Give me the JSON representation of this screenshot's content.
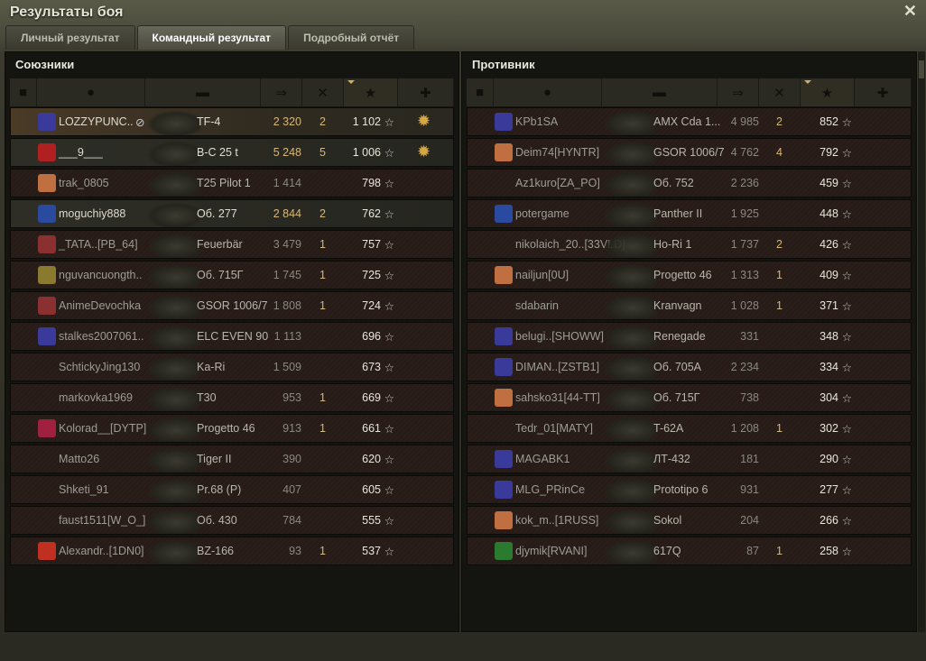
{
  "window": {
    "title": "Результаты боя",
    "close_icon": "close-icon"
  },
  "tabs": [
    {
      "label": "Личный результат",
      "active": false
    },
    {
      "label": "Командный результат",
      "active": true
    },
    {
      "label": "Подробный отчёт",
      "active": false
    }
  ],
  "columns": {
    "icons": [
      "rank-badge-icon",
      "player-icon",
      "tank-icon",
      "damage-icon",
      "kills-icon",
      "experience-star-icon",
      "medal-icon"
    ],
    "sorted_by": "experience"
  },
  "colors": {
    "accent_gold": "#d8b878",
    "self_row": "#4a3a26",
    "dead_row": "#2a1e1a"
  },
  "allies": {
    "title": "Союзники",
    "rows": [
      {
        "name": "LOZZYPUNC..",
        "tank": "TF-4",
        "damage": "2 320",
        "kills": "2",
        "xp": "1 102",
        "state": "self",
        "badge": "#3a3a9a",
        "medal": true,
        "hidden_icon": true
      },
      {
        "name": "___9___",
        "tank": "B-C 25 t",
        "damage": "5 248",
        "kills": "5",
        "xp": "1 006",
        "state": "alive",
        "badge": "#b02020",
        "medal": true
      },
      {
        "name": "trak_0805",
        "tank": "T25 Pilot 1",
        "damage": "1 414",
        "kills": "",
        "xp": "798",
        "state": "dead",
        "badge": "#c07040"
      },
      {
        "name": "moguchiy888",
        "tank": "Об. 277",
        "damage": "2 844",
        "kills": "2",
        "xp": "762",
        "state": "alive",
        "badge": "#2a4aa0"
      },
      {
        "name": "_TATA..[PB_64]",
        "tank": "Feuerbär",
        "damage": "3 479",
        "kills": "1",
        "xp": "757",
        "state": "dead",
        "badge": "#8a3030"
      },
      {
        "name": "nguvancuongth..",
        "tank": "Об. 715Г",
        "damage": "1 745",
        "kills": "1",
        "xp": "725",
        "state": "dead",
        "badge": "#8a7a30"
      },
      {
        "name": "AnimeDevochka",
        "tank": "GSOR 1006/7",
        "damage": "1 808",
        "kills": "1",
        "xp": "724",
        "state": "dead",
        "badge": "#8a3030"
      },
      {
        "name": "stalkes2007061..",
        "tank": "ELC EVEN 90",
        "damage": "1 113",
        "kills": "",
        "xp": "696",
        "state": "dead",
        "badge": "#3a3a9a"
      },
      {
        "name": "SchtickyJing130",
        "tank": "Ka-Ri",
        "damage": "1 509",
        "kills": "",
        "xp": "673",
        "state": "dead",
        "badge": ""
      },
      {
        "name": "markovka1969",
        "tank": "T30",
        "damage": "953",
        "kills": "1",
        "xp": "669",
        "state": "dead",
        "badge": ""
      },
      {
        "name": "Kolorad__[DYTP]",
        "tank": "Progetto 46",
        "damage": "913",
        "kills": "1",
        "xp": "661",
        "state": "dead",
        "badge": "#a02040"
      },
      {
        "name": "Matto26",
        "tank": "Tiger II",
        "damage": "390",
        "kills": "",
        "xp": "620",
        "state": "dead",
        "badge": ""
      },
      {
        "name": "Shketi_91",
        "tank": "Pr.68 (P)",
        "damage": "407",
        "kills": "",
        "xp": "605",
        "state": "dead",
        "badge": ""
      },
      {
        "name": "faust1511[W_O_]",
        "tank": "Об. 430",
        "damage": "784",
        "kills": "",
        "xp": "555",
        "state": "dead",
        "badge": ""
      },
      {
        "name": "Alexandr..[1DN0]",
        "tank": "BZ-166",
        "damage": "93",
        "kills": "1",
        "xp": "537",
        "state": "dead",
        "badge": "#c03020"
      }
    ]
  },
  "enemies": {
    "title": "Противник",
    "rows": [
      {
        "name": "KPb1SA",
        "tank": "AMX Cda 1...",
        "damage": "4 985",
        "kills": "2",
        "xp": "852",
        "state": "dead",
        "badge": "#3a3a9a"
      },
      {
        "name": "Deim74[HYNTR]",
        "tank": "GSOR 1006/7",
        "damage": "4 762",
        "kills": "4",
        "xp": "792",
        "state": "dead",
        "badge": "#c07040"
      },
      {
        "name": "Az1kuro[ZA_PO]",
        "tank": "Об. 752",
        "damage": "2 236",
        "kills": "",
        "xp": "459",
        "state": "dead",
        "badge": ""
      },
      {
        "name": "potergame",
        "tank": "Panther II",
        "damage": "1 925",
        "kills": "",
        "xp": "448",
        "state": "dead",
        "badge": "#2a4aa0"
      },
      {
        "name": "nikolaich_20..[33VLD]",
        "tank": "Ho-Ri 1",
        "damage": "1 737",
        "kills": "2",
        "xp": "426",
        "state": "dead",
        "badge": ""
      },
      {
        "name": "nailjun[0U]",
        "tank": "Progetto 46",
        "damage": "1 313",
        "kills": "1",
        "xp": "409",
        "state": "dead",
        "badge": "#c07040"
      },
      {
        "name": "sdabarin",
        "tank": "Kranvagn",
        "damage": "1 028",
        "kills": "1",
        "xp": "371",
        "state": "dead",
        "badge": ""
      },
      {
        "name": "belugi..[SHOWW]",
        "tank": "Renegade",
        "damage": "331",
        "kills": "",
        "xp": "348",
        "state": "dead",
        "badge": "#3a3a9a"
      },
      {
        "name": "DIMAN..[ZSTB1]",
        "tank": "Об. 705А",
        "damage": "2 234",
        "kills": "",
        "xp": "334",
        "state": "dead",
        "badge": "#3a3a9a"
      },
      {
        "name": "sahsko31[44-TT]",
        "tank": "Об. 715Г",
        "damage": "738",
        "kills": "",
        "xp": "304",
        "state": "dead",
        "badge": "#c07040"
      },
      {
        "name": "Tedr_01[MATY]",
        "tank": "T-62A",
        "damage": "1 208",
        "kills": "1",
        "xp": "302",
        "state": "dead",
        "badge": ""
      },
      {
        "name": "MAGABK1",
        "tank": "ЛТ-432",
        "damage": "181",
        "kills": "",
        "xp": "290",
        "state": "dead",
        "badge": "#3a3a9a"
      },
      {
        "name": "MLG_PRinCe",
        "tank": "Prototipo 6",
        "damage": "931",
        "kills": "",
        "xp": "277",
        "state": "dead",
        "badge": "#3a3a9a"
      },
      {
        "name": "kok_m..[1RUSS]",
        "tank": "Sokol",
        "damage": "204",
        "kills": "",
        "xp": "266",
        "state": "dead",
        "badge": "#c07040"
      },
      {
        "name": "djymik[RVANI]",
        "tank": "617Q",
        "damage": "87",
        "kills": "1",
        "xp": "258",
        "state": "dead",
        "badge": "#2a7a30"
      }
    ]
  }
}
